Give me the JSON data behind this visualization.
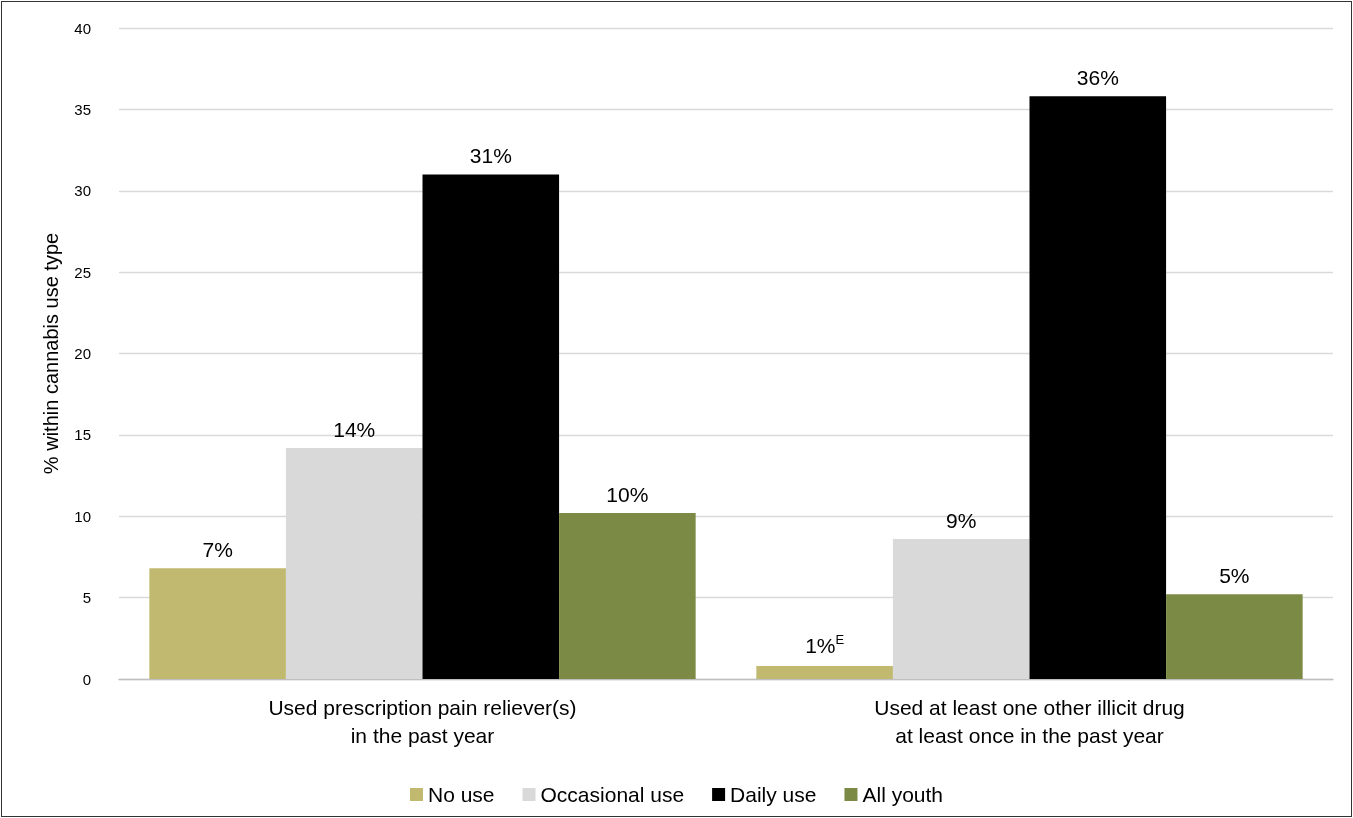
{
  "chart_data": {
    "type": "bar",
    "ylabel": "% within cannabis use type",
    "categories": [
      "Used prescription pain reliever(s)\nin the past year",
      "Used at least one other illicit drug\nat least once in the past year"
    ],
    "series": [
      {
        "name": "No use",
        "color": "#c0b96f",
        "values": [
          6.8,
          0.8
        ],
        "value_labels": [
          "7%",
          "1%$^{E}$"
        ]
      },
      {
        "name": "Occasional use",
        "color": "#d9d9d9",
        "values": [
          14.2,
          8.6
        ],
        "value_labels": [
          "14%",
          "9%"
        ]
      },
      {
        "name": "Daily use",
        "color": "#000000",
        "values": [
          31.0,
          35.8
        ],
        "value_labels": [
          "31%",
          "36%"
        ]
      },
      {
        "name": "All youth",
        "color": "#7b8a45",
        "values": [
          10.2,
          5.2
        ],
        "value_labels": [
          "10%",
          "5%"
        ]
      }
    ],
    "ylim": [
      0,
      40
    ],
    "yticks": [
      0,
      5,
      10,
      15,
      20,
      25,
      30,
      35,
      40
    ],
    "grid": "y",
    "legend": "bottom"
  }
}
